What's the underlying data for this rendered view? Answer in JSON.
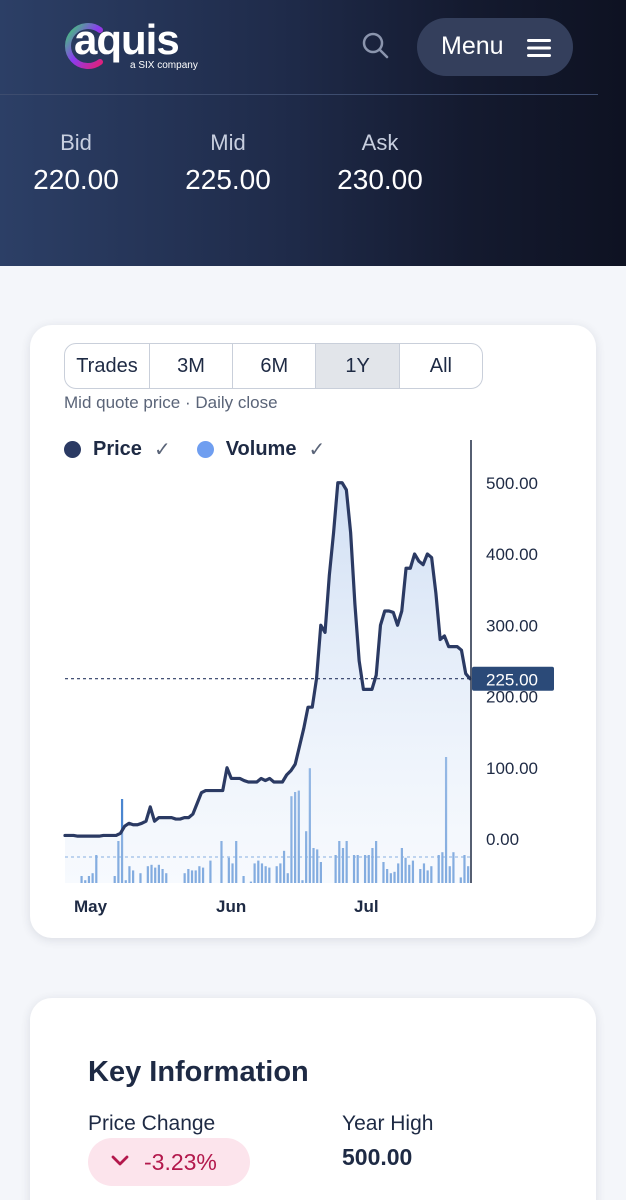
{
  "header": {
    "logo": {
      "name": "aquis",
      "tagline": "a SIX company"
    },
    "menu_label": "Menu",
    "quotes": [
      {
        "label": "Bid",
        "value": "220.00"
      },
      {
        "label": "Mid",
        "value": "225.00"
      },
      {
        "label": "Ask",
        "value": "230.00"
      }
    ]
  },
  "chart_panel": {
    "tabs": [
      {
        "label": "Trades",
        "active": false
      },
      {
        "label": "3M",
        "active": false
      },
      {
        "label": "6M",
        "active": false
      },
      {
        "label": "1Y",
        "active": true
      },
      {
        "label": "All",
        "active": false
      }
    ],
    "subtitle": "Mid quote price · Daily close",
    "legend": [
      {
        "label": "Price",
        "color": "#2b3a63",
        "checked": true
      },
      {
        "label": "Volume",
        "color": "#6f9ef0",
        "checked": true
      }
    ]
  },
  "chart_data": {
    "type": "line",
    "title": "",
    "xlabel": "",
    "ylabel": "",
    "x_tick_labels": [
      "May",
      "Jun",
      "Jul"
    ],
    "y_tick_labels": [
      "0.00",
      "100.00",
      "200.00",
      "300.00",
      "400.00",
      "500.00"
    ],
    "ylim": [
      -60,
      530
    ],
    "current_price_label": "225.00",
    "current_price": 225,
    "grid": false,
    "legend_position": "top-left",
    "series": [
      {
        "name": "Price",
        "color": "#2b3a63",
        "values": [
          5,
          5,
          5,
          4,
          4,
          4,
          4,
          4,
          4,
          5,
          5,
          5,
          5,
          8,
          18,
          22,
          20,
          20,
          22,
          25,
          45,
          25,
          30,
          30,
          30,
          30,
          28,
          28,
          30,
          30,
          35,
          50,
          65,
          68,
          68,
          68,
          68,
          68,
          100,
          85,
          85,
          85,
          82,
          80,
          80,
          80,
          85,
          82,
          85,
          80,
          80,
          80,
          90,
          96,
          105,
          130,
          155,
          185,
          185,
          225,
          300,
          290,
          370,
          430,
          500,
          500,
          490,
          430,
          330,
          250,
          210,
          210,
          210,
          230,
          300,
          320,
          320,
          318,
          300,
          320,
          380,
          380,
          400,
          390,
          385,
          400,
          395,
          345,
          280,
          285,
          270,
          270,
          270,
          265,
          232,
          225
        ],
        "style": "line with area fill"
      },
      {
        "name": "Volume",
        "color": "#4a86d0",
        "values": [
          0,
          0,
          0,
          0,
          0.05,
          0.02,
          0.05,
          0.07,
          0.2,
          0,
          0,
          0,
          0,
          0.05,
          0.3,
          0.6,
          0.02,
          0.12,
          0.09,
          0,
          0.07,
          0,
          0.12,
          0.13,
          0.11,
          0.13,
          0.1,
          0.07,
          0,
          0,
          0,
          0,
          0.07,
          0.1,
          0.09,
          0.09,
          0.12,
          0.11,
          0,
          0.16,
          0,
          0,
          0.3,
          0,
          0.18,
          0.14,
          0.3,
          0,
          0.05,
          0,
          0.01,
          0.14,
          0.16,
          0.14,
          0.12,
          0.11,
          0,
          0.12,
          0.14,
          0.23,
          0.07,
          0.62,
          0.65,
          0.66,
          0.02,
          0.37,
          0.82,
          0.25,
          0.24,
          0.15,
          0,
          0,
          0,
          0.2,
          0.3,
          0.25,
          0.3,
          0,
          0.2,
          0.2,
          0,
          0.2,
          0.2,
          0.25,
          0.3,
          0,
          0.15,
          0.1,
          0.07,
          0.08,
          0.14,
          0.25,
          0.18,
          0.13,
          0.16,
          0,
          0.1,
          0.14,
          0.09,
          0.12,
          0,
          0.2,
          0.22,
          0.9,
          0.12,
          0.22,
          0,
          0.04,
          0.2,
          0.12
        ],
        "style": "bars, relative height (0-1)"
      }
    ]
  },
  "key_info": {
    "title": "Key Information",
    "price_change_label": "Price Change",
    "price_change_value": "-3.23%",
    "year_high_label": "Year High",
    "year_high_value": "500.00"
  }
}
